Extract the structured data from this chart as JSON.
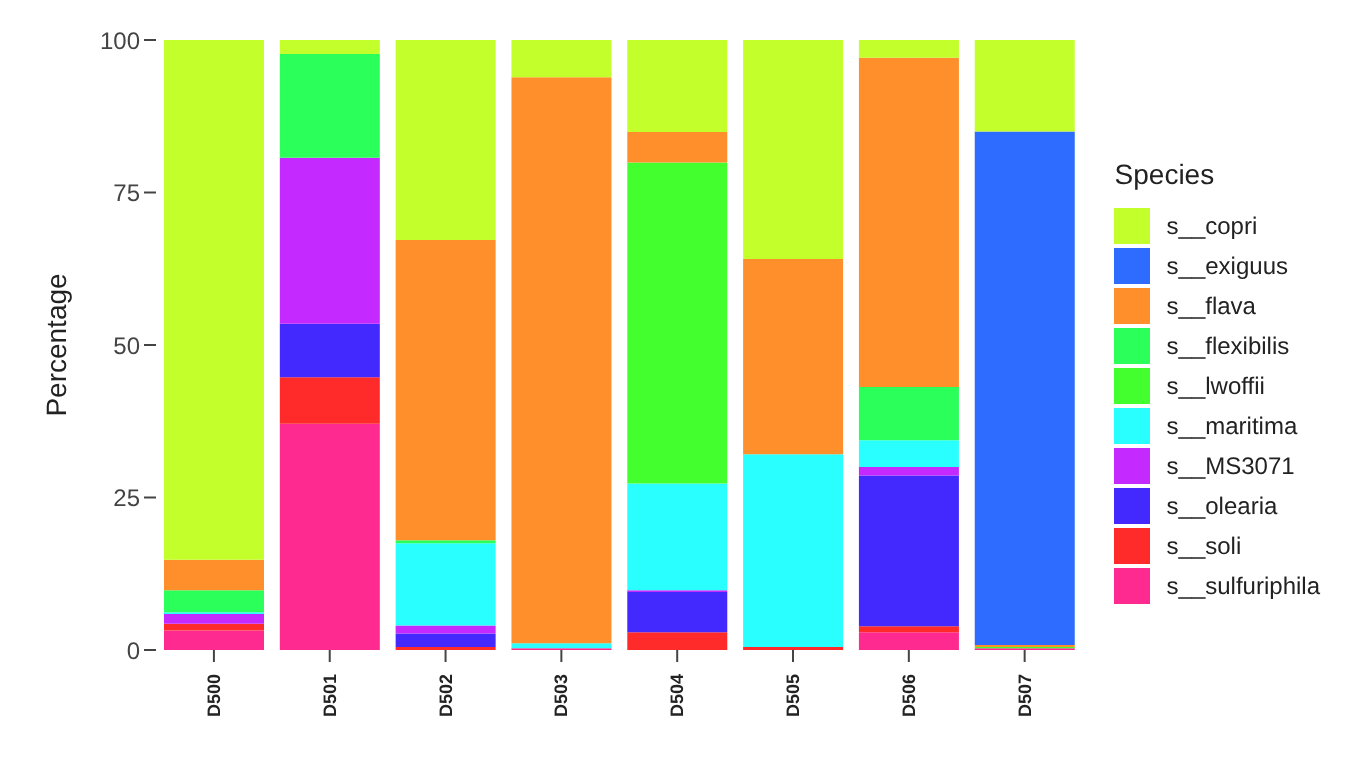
{
  "chart_data": {
    "type": "bar",
    "stacked": true,
    "ylabel": "Percentage",
    "legend_title": "Species",
    "legend": "right",
    "grid": false,
    "categories": [
      "D500",
      "D501",
      "D502",
      "D503",
      "D504",
      "D505",
      "D506",
      "D507"
    ],
    "ylim": [
      0,
      100
    ],
    "yticks": [
      0,
      25,
      50,
      75,
      100
    ],
    "series": [
      {
        "name": "s__sulfuriphila",
        "color": "#ff2a8f",
        "values": [
          3.2,
          37.1,
          0,
          0.3,
          0,
          0,
          2.9,
          0.3
        ]
      },
      {
        "name": "s__soli",
        "color": "#ff2a2a",
        "values": [
          1.1,
          7.6,
          0.5,
          0,
          2.9,
          0.5,
          1.0,
          0
        ]
      },
      {
        "name": "s__olearia",
        "color": "#4429ff",
        "values": [
          0,
          8.8,
          2.2,
          0,
          6.6,
          0,
          24.7,
          0
        ]
      },
      {
        "name": "s__MS3071",
        "color": "#c42aff",
        "values": [
          1.6,
          27.2,
          1.3,
          0,
          0.3,
          0,
          1.4,
          0
        ]
      },
      {
        "name": "s__maritima",
        "color": "#2affff",
        "values": [
          0.3,
          0,
          13.5,
          0.8,
          17.5,
          31.6,
          4.4,
          0
        ]
      },
      {
        "name": "s__lwoffii",
        "color": "#44ff2e",
        "values": [
          0,
          0,
          0,
          0,
          52.6,
          0,
          0,
          0.2
        ]
      },
      {
        "name": "s__flexibilis",
        "color": "#2aff5a",
        "values": [
          3.6,
          17.0,
          0.5,
          0,
          0,
          0,
          8.7,
          0
        ]
      },
      {
        "name": "s__flava",
        "color": "#ff8f2a",
        "values": [
          5.0,
          0,
          49.2,
          92.8,
          5.0,
          32.0,
          54.0,
          0.3
        ]
      },
      {
        "name": "s__exiguus",
        "color": "#2e6bff",
        "values": [
          0,
          0,
          0,
          0,
          0,
          0,
          0,
          84.2
        ]
      },
      {
        "name": "s__copri",
        "color": "#c3ff2a",
        "values": [
          85.2,
          2.3,
          32.8,
          6.1,
          15.1,
          35.9,
          2.9,
          15.0
        ]
      }
    ]
  }
}
